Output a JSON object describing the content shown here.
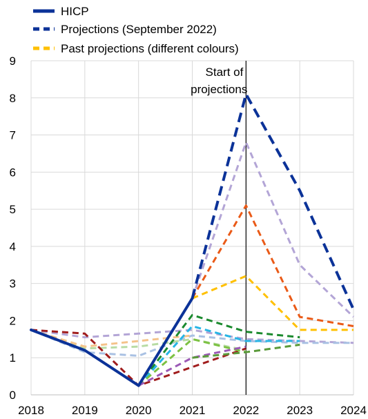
{
  "chart_data": {
    "type": "line",
    "ylim": [
      0,
      9
    ],
    "yticks": [
      0,
      1,
      2,
      3,
      4,
      5,
      6,
      7,
      8,
      9
    ],
    "xlim": [
      2018,
      2024
    ],
    "xticks": [
      2018,
      2019,
      2020,
      2021,
      2022,
      2023,
      2024
    ],
    "grid": "horizontal and vertical",
    "legend_position": "top-left",
    "legend": [
      {
        "label": "HICP",
        "style": "solid",
        "color": "#0b3298"
      },
      {
        "label": "Projections (September 2022)",
        "style": "dashed",
        "color": "#0b3298"
      },
      {
        "label": "Past projections (different colours)",
        "style": "dashed",
        "color": "#ffc000"
      }
    ],
    "annotation": {
      "text_line1": "Start of",
      "text_line2": "projections",
      "x": 2022
    },
    "series": [
      {
        "name": "HICP",
        "style": "solid",
        "color": "#0b3298",
        "width": 4,
        "x": [
          2018,
          2019,
          2020,
          2021
        ],
        "y": [
          1.75,
          1.2,
          0.25,
          2.6
        ]
      },
      {
        "name": "Projections (September 2022)",
        "style": "dashed",
        "color": "#0b3298",
        "width": 4,
        "x": [
          2021,
          2022,
          2023,
          2024
        ],
        "y": [
          2.6,
          8.1,
          5.5,
          2.3
        ]
      },
      {
        "style": "dashed",
        "color": "#b3a5d6",
        "width": 3,
        "x": [
          2018,
          2019,
          2020,
          2021,
          2022,
          2023,
          2024
        ],
        "y": [
          1.75,
          1.55,
          1.65,
          1.75,
          1.5,
          1.45,
          1.4
        ]
      },
      {
        "style": "dashed",
        "color": "#a9c1e3",
        "width": 3,
        "x": [
          2018,
          2019,
          2020,
          2021,
          2022,
          2023,
          2024
        ],
        "y": [
          1.75,
          1.15,
          1.05,
          1.6,
          1.45,
          1.4,
          1.4
        ]
      },
      {
        "style": "dashed",
        "color": "#b8dca4",
        "width": 3,
        "x": [
          2018,
          2019,
          2020,
          2021,
          2022
        ],
        "y": [
          1.75,
          1.25,
          1.3,
          1.5,
          1.2
        ]
      },
      {
        "style": "dashed",
        "color": "#f4c38a",
        "width": 3,
        "x": [
          2018,
          2019,
          2020,
          2021
        ],
        "y": [
          1.75,
          1.3,
          1.45,
          1.6
        ]
      },
      {
        "style": "dashed",
        "color": "#a01c1c",
        "width": 3,
        "x": [
          2018,
          2019,
          2020,
          2021,
          2022
        ],
        "y": [
          1.75,
          1.65,
          0.25,
          0.75,
          1.25
        ]
      },
      {
        "style": "dashed",
        "color": "#b3a5d6",
        "width": 3,
        "x": [
          2021,
          2022,
          2023,
          2024
        ],
        "y": [
          2.6,
          6.8,
          3.5,
          2.1
        ]
      },
      {
        "style": "dashed",
        "color": "#ea5a17",
        "width": 3,
        "x": [
          2021,
          2022,
          2023,
          2024
        ],
        "y": [
          2.6,
          5.1,
          2.1,
          1.85
        ]
      },
      {
        "style": "dashed",
        "color": "#ffc000",
        "width": 3,
        "x": [
          2021,
          2022,
          2023,
          2024
        ],
        "y": [
          2.6,
          3.2,
          1.75,
          1.75
        ]
      },
      {
        "style": "dashed",
        "color": "#1b8a2e",
        "width": 3,
        "x": [
          2020,
          2021,
          2022,
          2023
        ],
        "y": [
          0.25,
          2.15,
          1.7,
          1.55
        ]
      },
      {
        "style": "dashed",
        "color": "#27b5e5",
        "width": 3,
        "x": [
          2020,
          2021,
          2022,
          2023
        ],
        "y": [
          0.25,
          1.85,
          1.45,
          1.45
        ]
      },
      {
        "style": "dashed",
        "color": "#7cc142",
        "width": 3,
        "x": [
          2020,
          2021,
          2022
        ],
        "y": [
          0.25,
          1.5,
          1.15
        ]
      },
      {
        "style": "dashed",
        "color": "#9b59b6",
        "width": 3,
        "x": [
          2020,
          2021,
          2022
        ],
        "y": [
          0.25,
          1.0,
          1.3
        ]
      },
      {
        "style": "dashed",
        "color": "#5a9a3a",
        "width": 3,
        "x": [
          2021,
          2022,
          2023
        ],
        "y": [
          1.0,
          1.15,
          1.35
        ]
      }
    ]
  }
}
